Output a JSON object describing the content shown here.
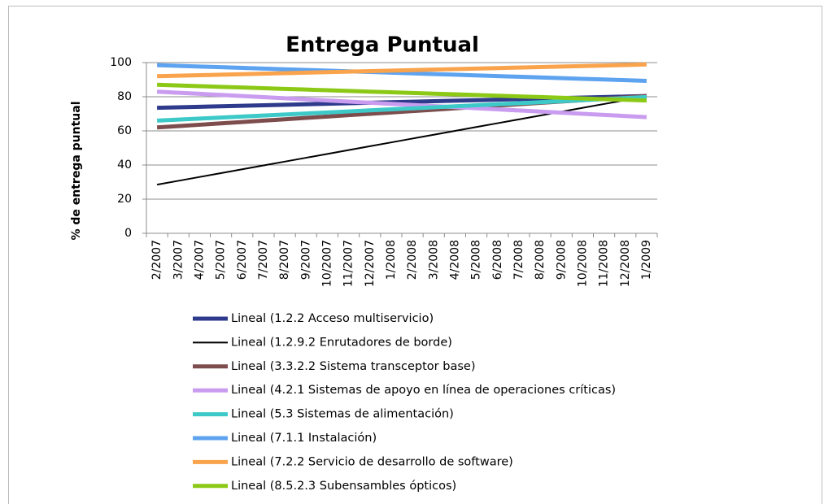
{
  "chart_data": {
    "type": "line",
    "title": "Entrega Puntual",
    "y_label": "% de entrega puntual",
    "categories": [
      "2/2007",
      "3/2007",
      "4/2007",
      "5/2007",
      "6/2007",
      "7/2007",
      "8/2007",
      "9/2007",
      "10/2007",
      "11/2007",
      "12/2007",
      "1/2008",
      "2/2008",
      "3/2008",
      "4/2008",
      "5/2008",
      "6/2008",
      "7/2008",
      "8/2008",
      "9/2008",
      "10/2008",
      "11/2008",
      "12/2008",
      "1/2009"
    ],
    "ylim": [
      0,
      100
    ],
    "yticks": [
      0,
      20,
      40,
      60,
      80,
      100
    ],
    "grid": true,
    "legend": "bottom",
    "series": [
      {
        "name": "Lineal (1.2.2 Acceso multiservicio)",
        "color": "#2e3a8c",
        "width": 5,
        "values": [
          73.5,
          73.8,
          74.1,
          74.4,
          74.7,
          75,
          75.3,
          75.6,
          75.9,
          76.2,
          76.5,
          76.8,
          77.1,
          77.4,
          77.7,
          78,
          78.3,
          78.6,
          78.9,
          79.2,
          79.5,
          79.8,
          80.1,
          80.4
        ]
      },
      {
        "name": "Lineal (1.2.9.2 Enrutadores de borde)",
        "color": "#000000",
        "width": 2,
        "values": [
          28.5,
          30.75,
          33,
          35.25,
          37.5,
          39.75,
          42,
          44.25,
          46.5,
          48.75,
          51,
          53.25,
          55.5,
          57.75,
          60,
          62.25,
          64.5,
          66.75,
          69,
          71.25,
          73.5,
          75.75,
          78,
          80.25
        ]
      },
      {
        "name": "Lineal (3.3.2.2 Sistema transceptor base)",
        "color": "#7d4d4d",
        "width": 5,
        "values": [
          62,
          62.8,
          63.6,
          64.4,
          65.2,
          66,
          66.8,
          67.6,
          68.4,
          69.2,
          70,
          70.8,
          71.6,
          72.4,
          73.2,
          74,
          74.8,
          75.6,
          76.4,
          77.2,
          78,
          78.8,
          79.6,
          80.4
        ]
      },
      {
        "name": "Lineal (4.2.1 Sistemas de apoyo en línea de operaciones críticas)",
        "color": "#c99cf0",
        "width": 5,
        "values": [
          83,
          82.35,
          81.7,
          81.05,
          80.4,
          79.75,
          79.1,
          78.45,
          77.8,
          77.15,
          76.5,
          75.85,
          75.2,
          74.55,
          73.9,
          73.25,
          72.6,
          71.95,
          71.3,
          70.65,
          70,
          69.35,
          68.7,
          68.05
        ]
      },
      {
        "name": "Lineal (5.3 Sistemas de alimentación)",
        "color": "#3ec9c9",
        "width": 5,
        "values": [
          66,
          66.6,
          67.2,
          67.8,
          68.4,
          69,
          69.6,
          70.2,
          70.8,
          71.4,
          72,
          72.6,
          73.2,
          73.8,
          74.4,
          75,
          75.6,
          76.2,
          76.8,
          77.4,
          78,
          78.6,
          79.2,
          79.8
        ]
      },
      {
        "name": "Lineal (7.1.1 Instalación)",
        "color": "#5ea3f0",
        "width": 5,
        "values": [
          98.5,
          98.1,
          97.7,
          97.3,
          96.9,
          96.5,
          96.1,
          95.7,
          95.3,
          94.9,
          94.5,
          94.1,
          93.7,
          93.3,
          92.9,
          92.5,
          92.1,
          91.7,
          91.3,
          90.9,
          90.5,
          90.1,
          89.7,
          89.3
        ]
      },
      {
        "name": "Lineal (7.2.2 Servicio de desarrollo de software)",
        "color": "#f9a34c",
        "width": 5,
        "values": [
          92,
          92.3,
          92.6,
          92.9,
          93.2,
          93.5,
          93.8,
          94.1,
          94.4,
          94.7,
          95,
          95.3,
          95.6,
          95.9,
          96.2,
          96.5,
          96.8,
          97.1,
          97.4,
          97.7,
          98,
          98.3,
          98.6,
          98.9
        ]
      },
      {
        "name": "Lineal (8.5.2.3 Subensambles ópticos)",
        "color": "#8cc916",
        "width": 5,
        "values": [
          87,
          86.6,
          86.2,
          85.8,
          85.4,
          85,
          84.6,
          84.2,
          83.8,
          83.4,
          83,
          82.6,
          82.2,
          81.8,
          81.4,
          81,
          80.6,
          80.2,
          79.8,
          79.4,
          79,
          78.6,
          78.2,
          77.8
        ]
      }
    ]
  }
}
